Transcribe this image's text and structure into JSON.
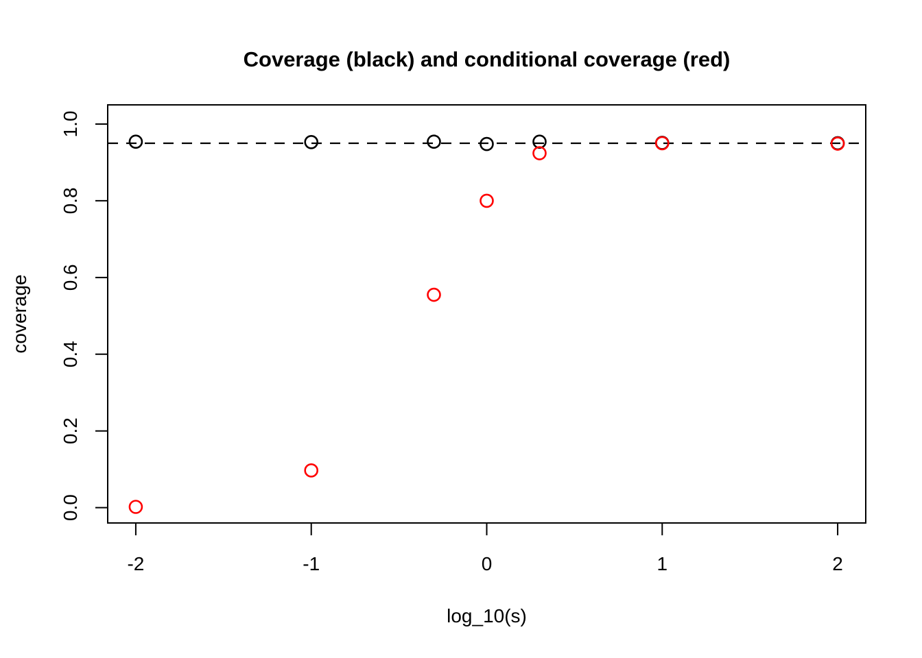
{
  "title": "Coverage (black) and conditional coverage (red)",
  "colors": {
    "background": "#ffffff",
    "foreground": "#000000",
    "coverage_series": "#000000",
    "conditional_coverage_series": "#ff0000"
  },
  "chart_data": {
    "type": "scatter",
    "title": "Coverage (black) and conditional coverage (red)",
    "xlabel": "log_10(s)",
    "ylabel": "coverage",
    "xlim": [
      -2.16,
      2.16
    ],
    "ylim": [
      -0.04,
      1.05
    ],
    "x_ticks": [
      -2,
      -1,
      0,
      1,
      2
    ],
    "x_tick_labels": [
      "-2",
      "-1",
      "0",
      "1",
      "2"
    ],
    "y_ticks": [
      0.0,
      0.2,
      0.4,
      0.6,
      0.8,
      1.0
    ],
    "y_tick_labels": [
      "0.0",
      "0.2",
      "0.4",
      "0.6",
      "0.8",
      "1.0"
    ],
    "grid": false,
    "legend": "none",
    "reference_line": {
      "y": 0.95,
      "style": "dashed",
      "color": "#000000"
    },
    "x": [
      -2,
      -1,
      -0.301,
      0,
      0.301,
      1,
      2
    ],
    "series": [
      {
        "name": "coverage (black)",
        "color": "#000000",
        "values": [
          0.954,
          0.953,
          0.954,
          0.948,
          0.954,
          0.951,
          0.95
        ]
      },
      {
        "name": "conditional coverage (red)",
        "color": "#ff0000",
        "values": [
          0.002,
          0.097,
          0.555,
          0.8,
          0.924,
          0.95,
          0.949
        ]
      }
    ],
    "marker": {
      "shape": "open-circle",
      "radius": 9,
      "stroke_width": 2.6
    }
  }
}
